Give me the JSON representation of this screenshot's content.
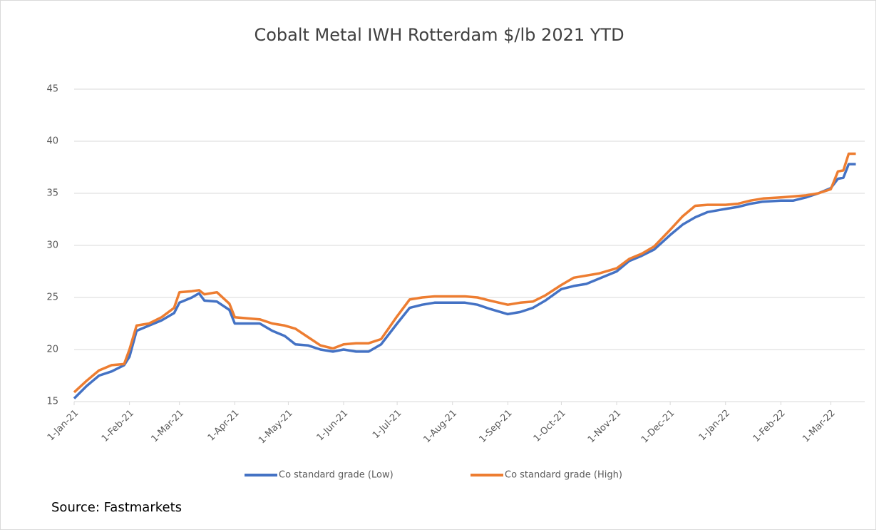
{
  "chart_data": {
    "type": "line",
    "title": "Cobalt Metal IWH Rotterdam $/lb 2021 YTD",
    "source": "Source: Fastmarkets",
    "x": [
      "2021-01-01",
      "2021-01-08",
      "2021-01-15",
      "2021-01-22",
      "2021-01-29",
      "2021-02-01",
      "2021-02-05",
      "2021-02-12",
      "2021-02-19",
      "2021-02-26",
      "2021-03-01",
      "2021-03-08",
      "2021-03-12",
      "2021-03-15",
      "2021-03-22",
      "2021-03-29",
      "2021-04-01",
      "2021-04-08",
      "2021-04-15",
      "2021-04-22",
      "2021-04-29",
      "2021-05-05",
      "2021-05-12",
      "2021-05-19",
      "2021-05-26",
      "2021-06-01",
      "2021-06-08",
      "2021-06-15",
      "2021-06-22",
      "2021-07-01",
      "2021-07-08",
      "2021-07-15",
      "2021-07-22",
      "2021-08-01",
      "2021-08-08",
      "2021-08-15",
      "2021-08-22",
      "2021-09-01",
      "2021-09-08",
      "2021-09-15",
      "2021-09-22",
      "2021-10-01",
      "2021-10-08",
      "2021-10-15",
      "2021-10-22",
      "2021-11-01",
      "2021-11-08",
      "2021-11-15",
      "2021-11-22",
      "2021-12-01",
      "2021-12-08",
      "2021-12-15",
      "2021-12-22",
      "2022-01-01",
      "2022-01-08",
      "2022-01-15",
      "2022-01-22",
      "2022-02-01",
      "2022-02-08",
      "2022-02-15",
      "2022-02-22",
      "2022-03-01",
      "2022-03-05",
      "2022-03-08",
      "2022-03-11",
      "2022-03-15"
    ],
    "series": [
      {
        "name": "Co standard grade (Low)",
        "color": "#4472c4",
        "values": [
          15.3,
          16.5,
          17.5,
          17.9,
          18.5,
          19.3,
          21.8,
          22.3,
          22.8,
          23.5,
          24.5,
          25.0,
          25.4,
          24.7,
          24.6,
          23.8,
          22.5,
          22.5,
          22.5,
          21.8,
          21.3,
          20.5,
          20.4,
          20.0,
          19.8,
          20.0,
          19.8,
          19.8,
          20.5,
          22.5,
          24.0,
          24.3,
          24.5,
          24.5,
          24.5,
          24.3,
          23.9,
          23.4,
          23.6,
          24.0,
          24.7,
          25.8,
          26.1,
          26.3,
          26.8,
          27.5,
          28.5,
          29.0,
          29.6,
          31.0,
          32.0,
          32.7,
          33.2,
          33.5,
          33.7,
          34.0,
          34.2,
          34.3,
          34.3,
          34.6,
          35.0,
          35.5,
          36.4,
          36.5,
          37.8,
          37.8
        ]
      },
      {
        "name": "Co standard grade (High)",
        "color": "#ed7d31",
        "values": [
          15.9,
          17.0,
          18.0,
          18.5,
          18.6,
          20.0,
          22.3,
          22.5,
          23.1,
          24.0,
          25.5,
          25.6,
          25.7,
          25.3,
          25.5,
          24.4,
          23.1,
          23.0,
          22.9,
          22.5,
          22.3,
          22.0,
          21.2,
          20.4,
          20.1,
          20.5,
          20.6,
          20.6,
          21.0,
          23.2,
          24.8,
          25.0,
          25.1,
          25.1,
          25.1,
          25.0,
          24.7,
          24.3,
          24.5,
          24.6,
          25.2,
          26.2,
          26.9,
          27.1,
          27.3,
          27.8,
          28.7,
          29.2,
          29.9,
          31.5,
          32.8,
          33.8,
          33.9,
          33.9,
          34.0,
          34.3,
          34.5,
          34.6,
          34.7,
          34.8,
          35.0,
          35.4,
          37.1,
          37.2,
          38.8,
          38.8
        ]
      }
    ],
    "xlim": [
      "2021-01-01",
      "2022-03-20"
    ],
    "xticks": [
      {
        "value": "2021-01-01",
        "label": "1-Jan-21"
      },
      {
        "value": "2021-02-01",
        "label": "1-Feb-21"
      },
      {
        "value": "2021-03-01",
        "label": "1-Mar-21"
      },
      {
        "value": "2021-04-01",
        "label": "1-Apr-21"
      },
      {
        "value": "2021-05-01",
        "label": "1-May-21"
      },
      {
        "value": "2021-06-01",
        "label": "1-Jun-21"
      },
      {
        "value": "2021-07-01",
        "label": "1-Jul-21"
      },
      {
        "value": "2021-08-01",
        "label": "1-Aug-21"
      },
      {
        "value": "2021-09-01",
        "label": "1-Sep-21"
      },
      {
        "value": "2021-10-01",
        "label": "1-Oct-21"
      },
      {
        "value": "2021-11-01",
        "label": "1-Nov-21"
      },
      {
        "value": "2021-12-01",
        "label": "1-Dec-21"
      },
      {
        "value": "2022-01-01",
        "label": "1-Jan-22"
      },
      {
        "value": "2022-02-01",
        "label": "1-Feb-22"
      },
      {
        "value": "2022-03-01",
        "label": "1-Mar-22"
      }
    ],
    "ylim": [
      15,
      45
    ],
    "yticks": [
      15,
      20,
      25,
      30,
      35,
      40,
      45
    ],
    "grid": true,
    "legend": "bottom"
  }
}
